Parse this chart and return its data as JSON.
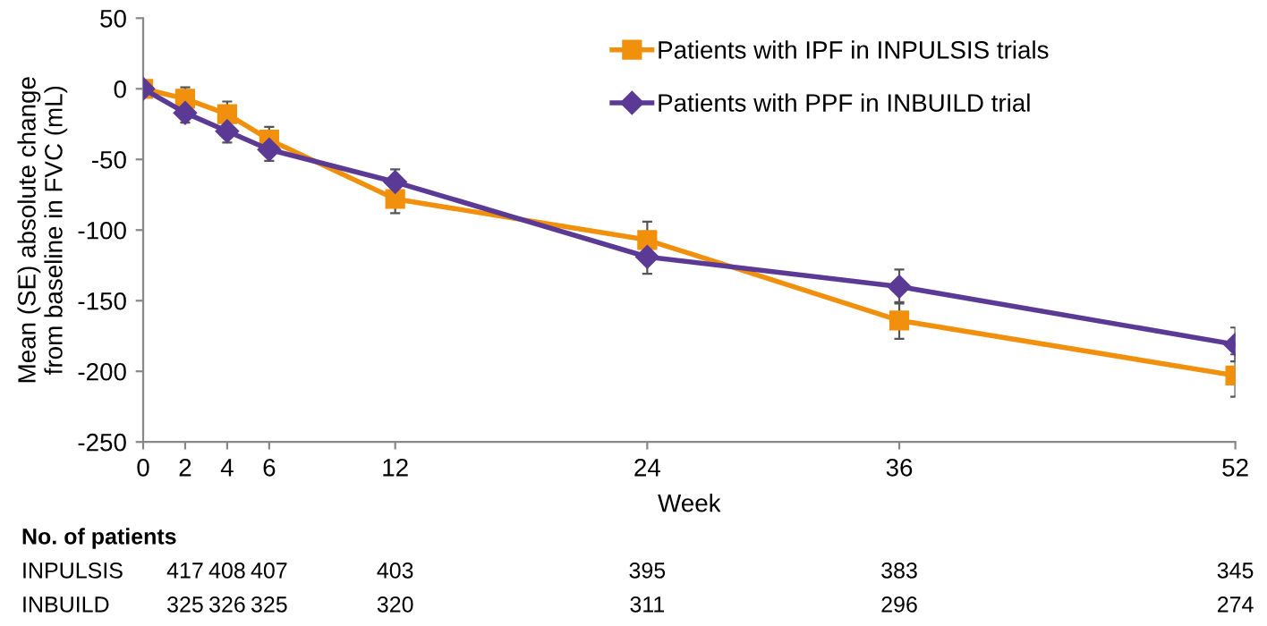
{
  "chart_data": {
    "type": "line",
    "xlabel": "Week",
    "ylabel": "Mean (SE) absolute change\nfrom baseline in FVC (mL)",
    "x": [
      0,
      2,
      4,
      6,
      12,
      24,
      36,
      52
    ],
    "xlim": [
      0,
      52
    ],
    "xticks": [
      0,
      2,
      4,
      6,
      12,
      24,
      36,
      52
    ],
    "ylim": [
      -250,
      50
    ],
    "yticks": [
      -250,
      -200,
      -150,
      -100,
      -50,
      0,
      50
    ],
    "series": [
      {
        "name": "Patients with IPF in INPULSIS trials",
        "color": "#f0900c",
        "marker": "square",
        "values": [
          0,
          -7,
          -18,
          -36,
          -78,
          -107,
          -164,
          -203
        ],
        "errors": [
          null,
          8,
          9,
          9,
          10,
          13,
          13,
          15
        ]
      },
      {
        "name": "Patients with PPF in INBUILD trial",
        "color": "#5b3a96",
        "marker": "diamond",
        "values": [
          0,
          -17,
          -30,
          -43,
          -66,
          -119,
          -140,
          -181
        ],
        "errors": [
          null,
          7,
          8,
          8,
          9,
          12,
          12,
          12
        ]
      }
    ],
    "grid": false,
    "legend": "top right",
    "line_style": "solid",
    "annotations": [
      "No. of patients",
      "INPULSIS",
      "417",
      "408",
      "407",
      "403",
      "395",
      "383",
      "345",
      "INBUILD",
      "325",
      "326",
      "325",
      "320",
      "311",
      "296",
      "274"
    ]
  }
}
